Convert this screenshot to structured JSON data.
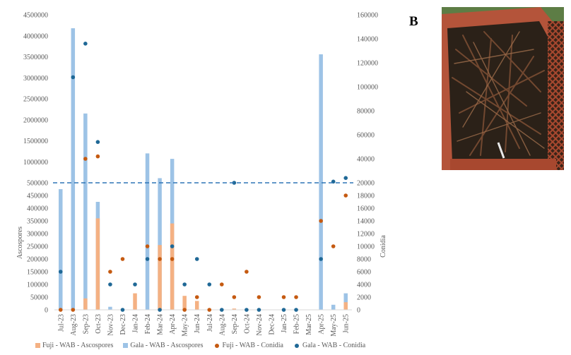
{
  "panel_label": "B",
  "photo": {
    "description_icon": "photo-twig-bin"
  },
  "chart_data": {
    "type": "bar-scatter-combo",
    "categories": [
      "Jul-23",
      "Aug-23",
      "Sep-23",
      "Oct-23",
      "Nov-23",
      "Dec-23",
      "Jan-24",
      "Feb-24",
      "Mar-24",
      "Apr-24",
      "May-24",
      "Jun-24",
      "Jul-24",
      "Aug-24",
      "Sep-24",
      "Oct-24",
      "Nov-24",
      "Dec-24",
      "Jan-25",
      "Feb-25",
      "Mar-25",
      "Apr-25",
      "May-25",
      "Jun-25"
    ],
    "ylabel": "Ascospores",
    "y2label": "Conidia",
    "y_axis_lower": {
      "range": [
        0,
        500000
      ],
      "ticks": [
        "0",
        "50000",
        "100000",
        "150000",
        "200000",
        "250000",
        "300000",
        "350000",
        "400000",
        "450000",
        "500000"
      ]
    },
    "y_axis_upper": {
      "range": [
        500000,
        4500000
      ],
      "ticks": [
        "1000000",
        "1500000",
        "2000000",
        "2500000",
        "3000000",
        "3500000",
        "4000000",
        "4500000"
      ]
    },
    "y2_axis": {
      "range": [
        0,
        160000
      ],
      "ticks": [
        "0",
        "2000",
        "4000",
        "6000",
        "8000",
        "10000",
        "12000",
        "14000",
        "16000",
        "18000",
        "20000",
        "40000",
        "60000",
        "80000",
        "100000",
        "120000",
        "140000",
        "160000"
      ]
    },
    "break_line_value": 500000,
    "series": [
      {
        "name": "Fuji - WAB - Ascospores",
        "kind": "bar",
        "color": "#f4b183",
        "values": [
          0,
          0,
          45000,
          360000,
          0,
          0,
          65000,
          0,
          255000,
          340000,
          55000,
          35000,
          3000,
          0,
          5000,
          0,
          0,
          0,
          0,
          0,
          0,
          0,
          0,
          30000
        ]
      },
      {
        "name": "Gala - WAB - Ascospores",
        "kind": "bar",
        "color": "#9dc3e6",
        "values": [
          475000,
          4180000,
          2150000,
          425000,
          12000,
          0,
          0,
          1200000,
          610000,
          1070000,
          0,
          0,
          0,
          0,
          0,
          0,
          0,
          0,
          0,
          0,
          0,
          3560000,
          20000,
          65000
        ]
      },
      {
        "name": "Fuji - WAB - Conidia",
        "kind": "point",
        "color": "#c55a11",
        "values": [
          0,
          0,
          40000,
          42000,
          6000,
          8000,
          null,
          10000,
          8000,
          8000,
          0,
          2000,
          0,
          4000,
          2000,
          6000,
          2000,
          null,
          2000,
          2000,
          null,
          14000,
          10000,
          18000
        ]
      },
      {
        "name": "Gala - WAB - Conidia",
        "kind": "point",
        "color": "#1f6896",
        "values": [
          6000,
          108000,
          136000,
          54000,
          4000,
          0,
          4000,
          8000,
          0,
          10000,
          4000,
          8000,
          4000,
          0,
          20000,
          0,
          0,
          null,
          0,
          0,
          null,
          8000,
          21000,
          24000
        ]
      }
    ],
    "legend": {
      "position": "bottom"
    },
    "grid": false
  }
}
